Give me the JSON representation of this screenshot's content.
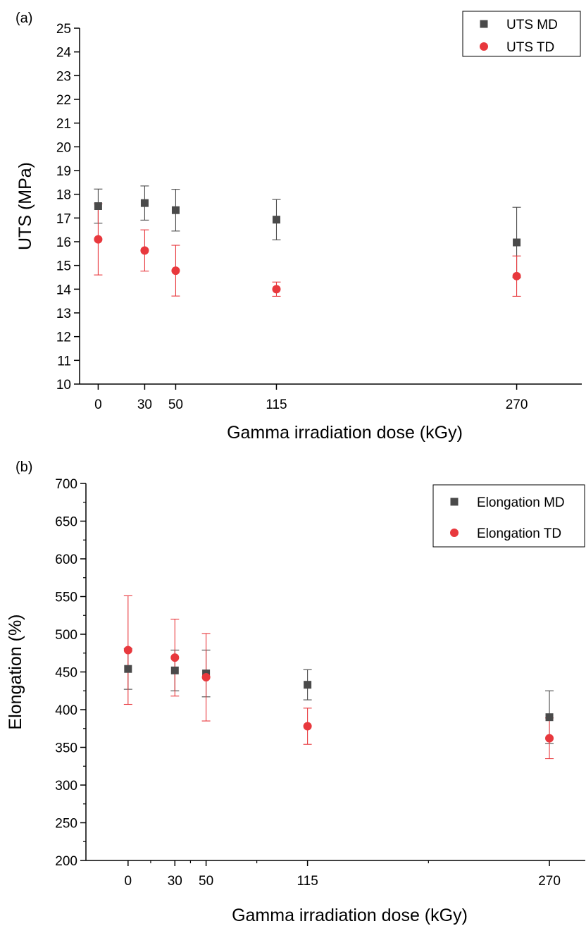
{
  "colors": {
    "md": "#4a4a4a",
    "td": "#e8383d"
  },
  "chart_data": [
    {
      "type": "scatter",
      "panel_label": "(a)",
      "xlabel": "Gamma irradiation dose (kGy)",
      "ylabel": "UTS (MPa)",
      "xlim": [
        -12,
        312
      ],
      "ylim": [
        10,
        25
      ],
      "x_ticks": [
        0,
        30,
        50,
        115,
        270
      ],
      "y_ticks": [
        10,
        11,
        12,
        13,
        14,
        15,
        16,
        17,
        18,
        19,
        20,
        21,
        22,
        23,
        24,
        25
      ],
      "legend_position": "top-right",
      "series": [
        {
          "name": "UTS MD",
          "marker": "square",
          "x": [
            0,
            30,
            50,
            115,
            270
          ],
          "y": [
            17.5,
            17.63,
            17.33,
            16.93,
            15.97
          ],
          "yerr": [
            0.72,
            0.72,
            0.88,
            0.85,
            1.48
          ]
        },
        {
          "name": "UTS TD",
          "marker": "circle",
          "x": [
            0,
            30,
            50,
            115,
            270
          ],
          "y": [
            16.1,
            15.63,
            14.78,
            14.0,
            14.55
          ],
          "yerr": [
            1.5,
            0.87,
            1.07,
            0.3,
            0.85
          ]
        }
      ]
    },
    {
      "type": "scatter",
      "panel_label": "(b)",
      "xlabel": "Gamma irradiation dose (kGy)",
      "ylabel": "Elongation (%)",
      "xlim": [
        -27,
        293
      ],
      "ylim": [
        200,
        700
      ],
      "x_ticks": [
        0,
        30,
        50,
        115,
        270
      ],
      "y_ticks": [
        200,
        250,
        300,
        350,
        400,
        450,
        500,
        550,
        600,
        650,
        700
      ],
      "legend_position": "top-right",
      "series": [
        {
          "name": "Elongation MD",
          "marker": "square",
          "x": [
            0,
            30,
            50,
            115,
            270
          ],
          "y": [
            454,
            452,
            448,
            433,
            390
          ],
          "yerr": [
            27,
            27,
            31,
            20,
            35
          ]
        },
        {
          "name": "Elongation TD",
          "marker": "circle",
          "x": [
            0,
            30,
            50,
            115,
            270
          ],
          "y": [
            479,
            469,
            443,
            378,
            362
          ],
          "yerr": [
            72,
            51,
            58,
            24,
            27
          ]
        }
      ]
    }
  ]
}
